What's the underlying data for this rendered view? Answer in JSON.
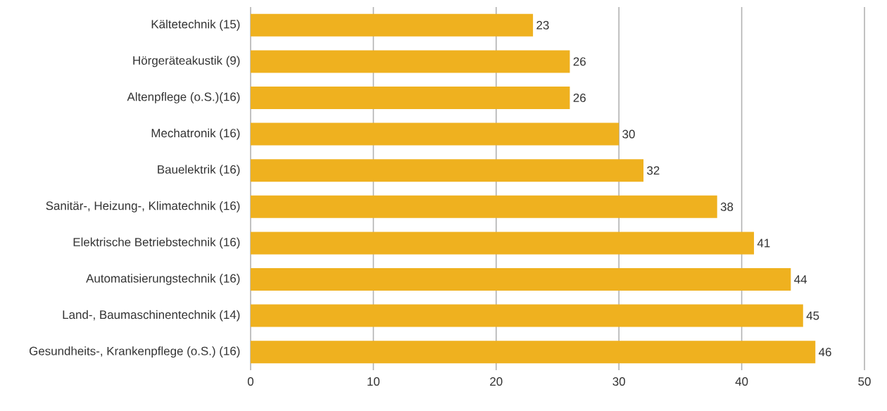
{
  "chart_data": {
    "type": "bar",
    "orientation": "horizontal",
    "categories": [
      "Kältetechnik (15)",
      "Hörgeräteakustik (9)",
      "Altenpflege (o.S.)(16)",
      "Mechatronik (16)",
      "Bauelektrik (16)",
      "Sanitär-, Heizung-, Klimatechnik (16)",
      "Elektrische Betriebstechnik (16)",
      "Automatisierungstechnik (16)",
      "Land-, Baumaschinentechnik (14)",
      "Gesundheits-, Krankenpflege (o.S.) (16)"
    ],
    "values": [
      23,
      26,
      26,
      30,
      32,
      38,
      41,
      44,
      45,
      46
    ],
    "color": "#efb11f",
    "xlim": [
      0,
      50
    ],
    "xticks": [
      0,
      10,
      20,
      30,
      40,
      50
    ],
    "grid": "x",
    "data_labels": true
  }
}
